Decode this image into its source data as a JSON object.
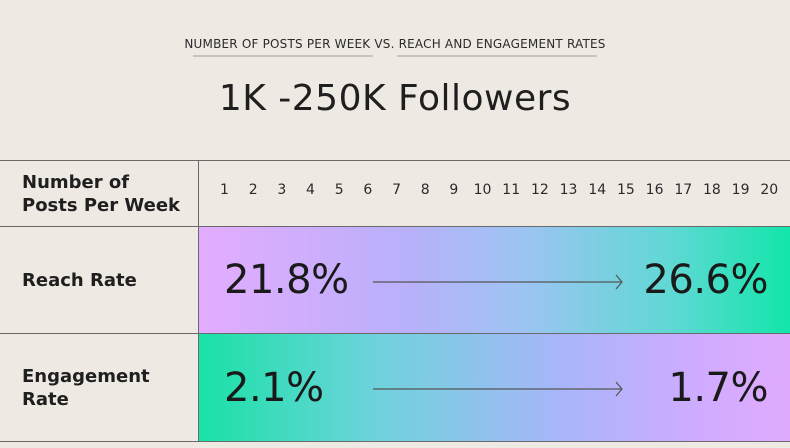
{
  "header": {
    "subtitle": "NUMBER OF POSTS PER WEEK VS. REACH AND ENGAGEMENT RATES",
    "title": "1K -250K Followers"
  },
  "table": {
    "posts_label": "Number of Posts Per Week",
    "posts_label_line1": "Number of",
    "posts_label_line2": "Posts Per Week",
    "posts": [
      "1",
      "2",
      "3",
      "4",
      "5",
      "6",
      "7",
      "8",
      "9",
      "10",
      "11",
      "12",
      "13",
      "14",
      "15",
      "16",
      "17",
      "18",
      "19",
      "20"
    ],
    "reach": {
      "label": "Reach Rate",
      "start": "21.8%",
      "end": "26.6%"
    },
    "engagement": {
      "label_line1": "Engagement",
      "label_line2": "Rate",
      "start": "2.1%",
      "end": "1.7%"
    }
  },
  "colors": {
    "background": "#efe9e3",
    "purple": "#e4acff",
    "green": "#12e6aa"
  }
}
